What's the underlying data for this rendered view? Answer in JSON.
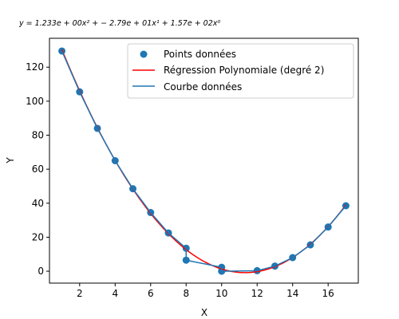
{
  "chart_data": {
    "type": "scatter",
    "title": "y = 1.233e + 00x² + − 2.79e + 01x¹ + 1.57e + 02x⁰",
    "xlabel": "X",
    "ylabel": "Y",
    "xlim": [
      0.3,
      17.7
    ],
    "ylim": [
      -7,
      137
    ],
    "xticks": [
      2,
      4,
      6,
      8,
      10,
      12,
      14,
      16
    ],
    "yticks": [
      0,
      20,
      40,
      60,
      80,
      100,
      120
    ],
    "grid": false,
    "legend_position": "top-right",
    "points": {
      "name": "Points données",
      "color": "#1f77b4",
      "x": [
        1,
        2,
        3,
        4,
        5,
        6,
        7,
        8,
        8,
        10,
        10,
        12,
        13,
        14,
        15,
        16,
        17
      ],
      "y": [
        129.5,
        105.5,
        84,
        65,
        48.5,
        34.5,
        22.5,
        13.5,
        6.5,
        2.3,
        0,
        0.3,
        3,
        8,
        15.5,
        26,
        38.5
      ]
    },
    "regression": {
      "name": "Régression Polynomiale (degré 2)",
      "color": "#ff0000",
      "coefficients": [
        1.233,
        -27.9,
        157
      ]
    },
    "curve": {
      "name": "Courbe données",
      "color": "#1f77b4",
      "x": [
        1,
        2,
        3,
        4,
        5,
        6,
        7,
        8,
        8,
        10,
        10,
        12,
        13,
        14,
        15,
        16,
        17
      ],
      "y": [
        129.5,
        105.5,
        84,
        65,
        48.5,
        34.5,
        22.5,
        13.5,
        6.5,
        2.3,
        0,
        0.3,
        3,
        8,
        15.5,
        26,
        38.5
      ]
    }
  }
}
